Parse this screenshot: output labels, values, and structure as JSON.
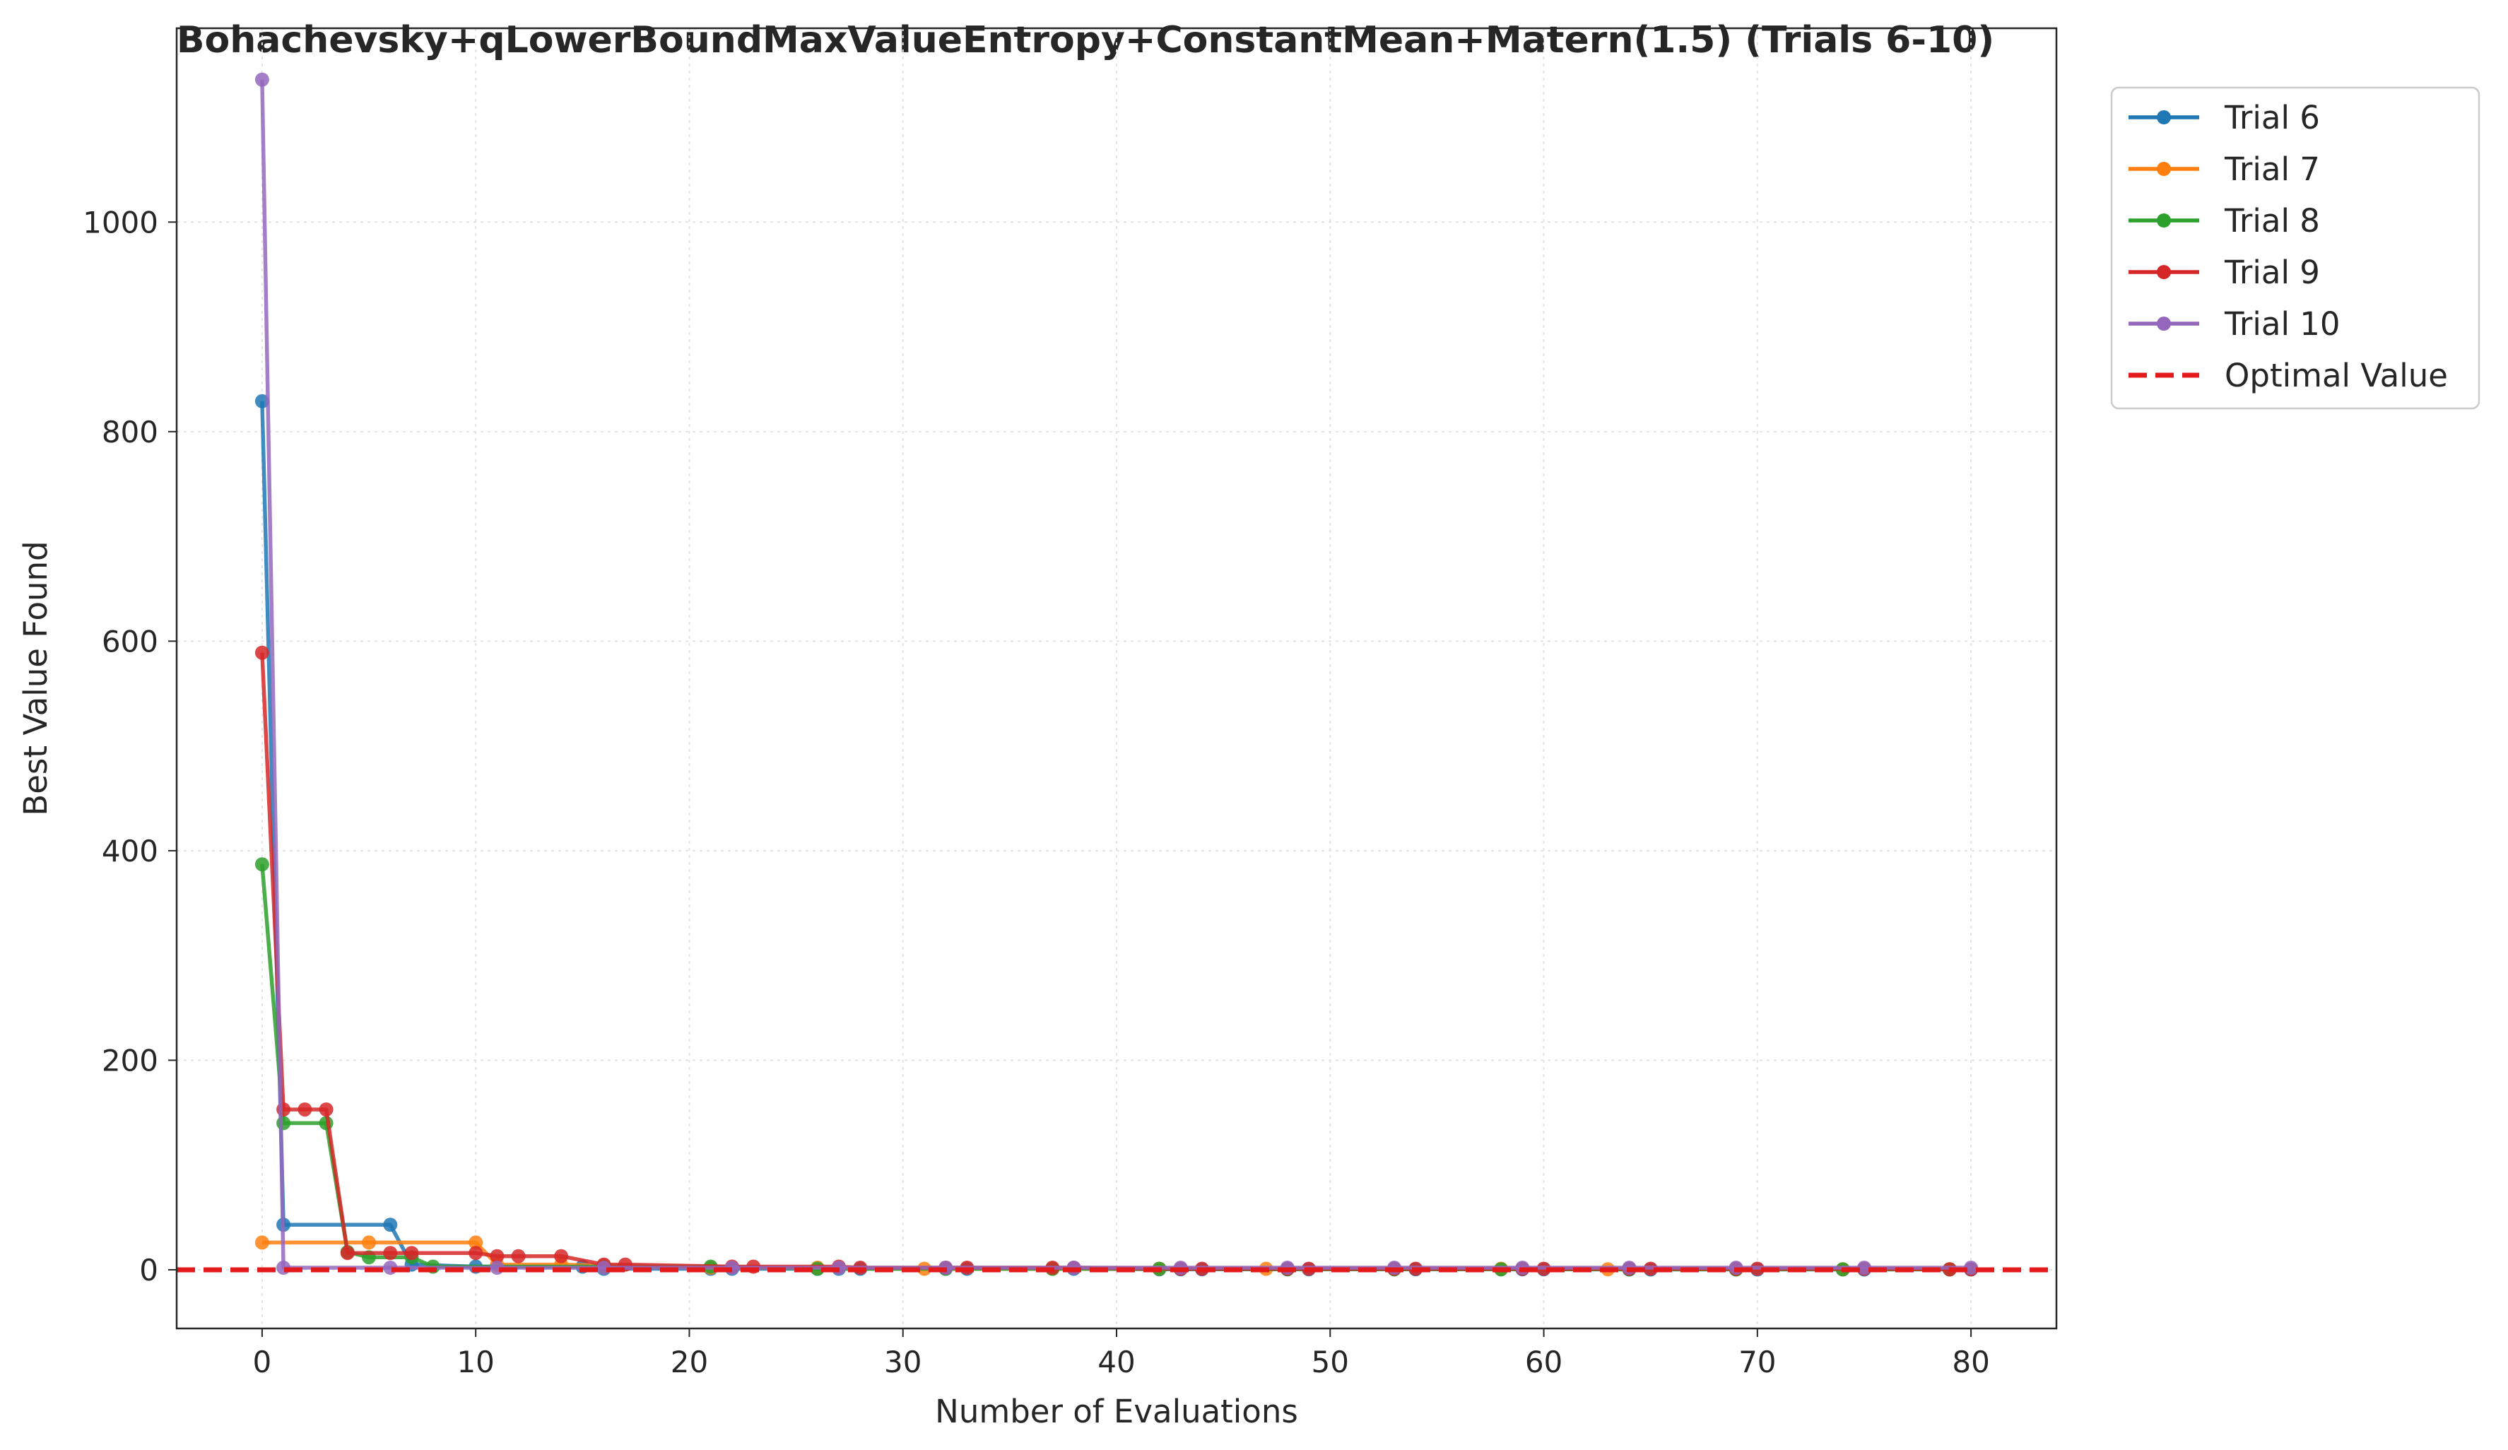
{
  "chart_data": {
    "type": "line",
    "title": "Bohachevsky+qLowerBoundMaxValueEntropy+ConstantMean+Matern(1.5) (Trials 6-10)",
    "xlabel": "Number of Evaluations",
    "ylabel": "Best Value Found",
    "xlim": [
      -4,
      84
    ],
    "ylim": [
      -56,
      1185
    ],
    "xticks": [
      0,
      10,
      20,
      30,
      40,
      50,
      60,
      70,
      80
    ],
    "yticks": [
      0,
      200,
      400,
      600,
      800,
      1000
    ],
    "grid": true,
    "legend_position": "outside-top-right",
    "series": [
      {
        "name": "Trial 6",
        "color": "#1f77b4",
        "points": [
          [
            0,
            829
          ],
          [
            1,
            43
          ],
          [
            6,
            43
          ],
          [
            7,
            5
          ],
          [
            10,
            3
          ],
          [
            15,
            3
          ],
          [
            16,
            1
          ],
          [
            21,
            1
          ],
          [
            22,
            1
          ],
          [
            26,
            1
          ],
          [
            27,
            1
          ],
          [
            28,
            1
          ],
          [
            32,
            1
          ],
          [
            33,
            1
          ],
          [
            37,
            1
          ],
          [
            38,
            1
          ],
          [
            42,
            0.5
          ],
          [
            43,
            0.5
          ],
          [
            44,
            0.5
          ],
          [
            48,
            0.5
          ],
          [
            49,
            0.5
          ],
          [
            53,
            0.5
          ],
          [
            54,
            0.5
          ],
          [
            58,
            0.5
          ],
          [
            59,
            0.5
          ],
          [
            60,
            0.5
          ],
          [
            64,
            0.3
          ],
          [
            65,
            0.3
          ],
          [
            69,
            0.3
          ],
          [
            70,
            0.3
          ],
          [
            74,
            0.3
          ],
          [
            75,
            0.3
          ],
          [
            79,
            0.3
          ],
          [
            80,
            0.3
          ]
        ]
      },
      {
        "name": "Trial 7",
        "color": "#ff7f0e",
        "points": [
          [
            0,
            26
          ],
          [
            5,
            26
          ],
          [
            10,
            26
          ],
          [
            11,
            5
          ],
          [
            14,
            5
          ],
          [
            16,
            4
          ],
          [
            21,
            2
          ],
          [
            26,
            2
          ],
          [
            31,
            1
          ],
          [
            37,
            1
          ],
          [
            42,
            1
          ],
          [
            47,
            1
          ],
          [
            53,
            1
          ],
          [
            58,
            1
          ],
          [
            63,
            0.5
          ],
          [
            69,
            0.5
          ],
          [
            74,
            0.5
          ],
          [
            79,
            0.5
          ]
        ]
      },
      {
        "name": "Trial 8",
        "color": "#2ca02c",
        "points": [
          [
            0,
            387
          ],
          [
            1,
            140
          ],
          [
            3,
            140
          ],
          [
            4,
            17
          ],
          [
            5,
            12
          ],
          [
            7,
            12
          ],
          [
            8,
            3
          ],
          [
            16,
            3
          ],
          [
            21,
            3
          ],
          [
            26,
            1
          ],
          [
            32,
            1
          ],
          [
            37,
            1
          ],
          [
            42,
            1
          ],
          [
            48,
            0.5
          ],
          [
            53,
            0.5
          ],
          [
            58,
            0.5
          ],
          [
            64,
            0.5
          ],
          [
            69,
            0.5
          ],
          [
            74,
            0.5
          ],
          [
            79,
            0.5
          ]
        ]
      },
      {
        "name": "Trial 9",
        "color": "#d62728",
        "points": [
          [
            0,
            589
          ],
          [
            1,
            153
          ],
          [
            2,
            153
          ],
          [
            3,
            153
          ],
          [
            4,
            16
          ],
          [
            6,
            16
          ],
          [
            7,
            16
          ],
          [
            10,
            16
          ],
          [
            11,
            13
          ],
          [
            12,
            13
          ],
          [
            14,
            13
          ],
          [
            16,
            5
          ],
          [
            17,
            5
          ],
          [
            22,
            3
          ],
          [
            23,
            3
          ],
          [
            27,
            3
          ],
          [
            28,
            2
          ],
          [
            32,
            2
          ],
          [
            33,
            2
          ],
          [
            37,
            2
          ],
          [
            38,
            2
          ],
          [
            43,
            1
          ],
          [
            44,
            1
          ],
          [
            48,
            1
          ],
          [
            49,
            1
          ],
          [
            53,
            1
          ],
          [
            54,
            1
          ],
          [
            59,
            1
          ],
          [
            60,
            1
          ],
          [
            64,
            1
          ],
          [
            65,
            1
          ],
          [
            69,
            1
          ],
          [
            70,
            1
          ],
          [
            75,
            1
          ],
          [
            79,
            0.5
          ],
          [
            80,
            0.5
          ]
        ]
      },
      {
        "name": "Trial 10",
        "color": "#9467bd",
        "points": [
          [
            0,
            1136
          ],
          [
            1,
            2
          ],
          [
            6,
            2
          ],
          [
            11,
            2
          ],
          [
            16,
            2
          ],
          [
            22,
            2
          ],
          [
            27,
            2
          ],
          [
            32,
            2
          ],
          [
            38,
            2
          ],
          [
            43,
            2
          ],
          [
            48,
            2
          ],
          [
            53,
            2
          ],
          [
            59,
            2
          ],
          [
            64,
            2
          ],
          [
            69,
            2
          ],
          [
            75,
            2
          ],
          [
            80,
            2
          ]
        ]
      }
    ],
    "reference_line": {
      "name": "Optimal Value",
      "y": 0,
      "color": "#e31a1c",
      "style": "dashed"
    }
  }
}
